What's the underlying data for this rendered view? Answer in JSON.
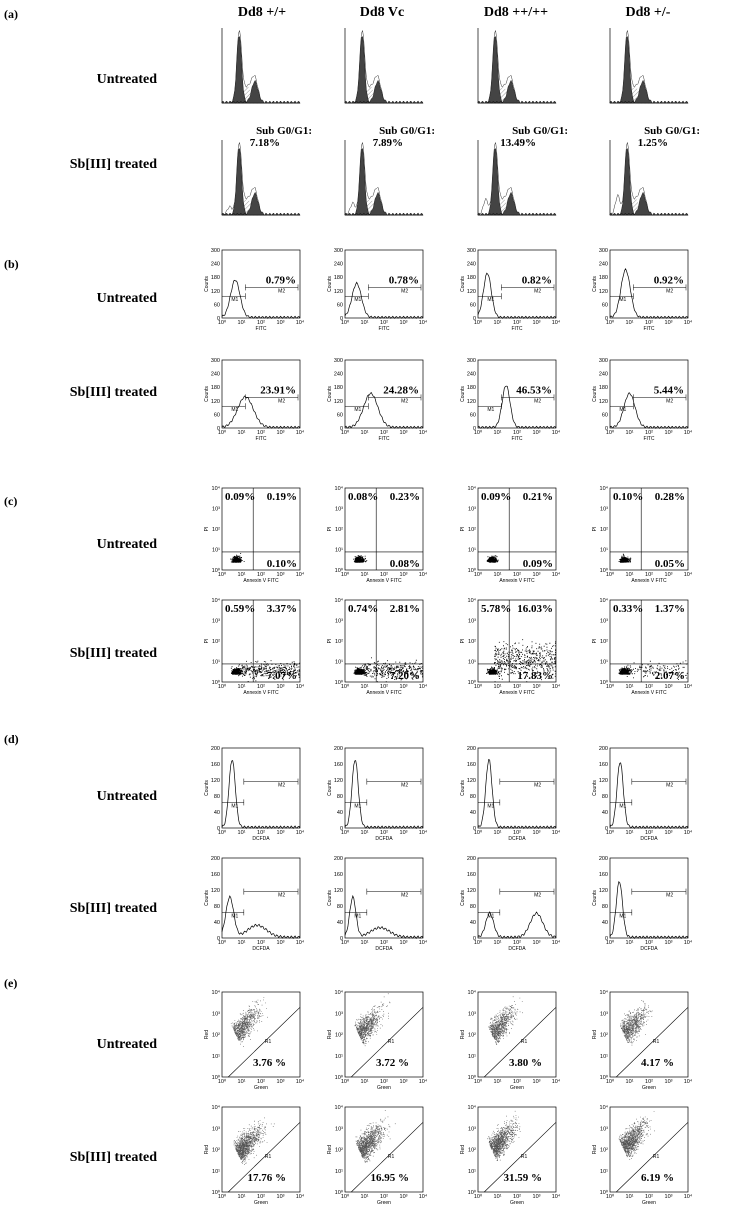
{
  "columns": [
    "Dd8 +/+",
    "Dd8 Vc",
    "Dd8 ++/++",
    "Dd8 +/-"
  ],
  "panels": [
    {
      "label": "(a)",
      "rows": [
        {
          "label": "Untreated"
        },
        {
          "label": "Sb[III] treated",
          "cells": [
            {
              "caption": "Sub G0/G1:",
              "value": "7.18%"
            },
            {
              "caption": "Sub G0/G1:",
              "value": "7.89%"
            },
            {
              "caption": "Sub G0/G1:",
              "value": "13.49%"
            },
            {
              "caption": "Sub G0/G1:",
              "value": "1.25%"
            }
          ]
        }
      ]
    },
    {
      "label": "(b)",
      "axes": {
        "x": "FITC",
        "y": "Counts",
        "gates": [
          "M1",
          "M2"
        ],
        "xticks": [
          "10⁰",
          "10¹",
          "10²",
          "10³",
          "10⁴"
        ],
        "yticks": [
          "0",
          "60",
          "120",
          "180",
          "240",
          "300"
        ]
      },
      "rows": [
        {
          "label": "Untreated",
          "cells": [
            "0.79%",
            "0.78%",
            "0.82%",
            "0.92%"
          ]
        },
        {
          "label": "Sb[III] treated",
          "cells": [
            "23.91%",
            "24.28%",
            "46.53%",
            "5.44%"
          ]
        }
      ]
    },
    {
      "label": "(c)",
      "axes": {
        "x": "Annexin V FITC",
        "y": "PI",
        "xticks": [
          "10⁰",
          "10¹",
          "10²",
          "10³",
          "10⁴"
        ],
        "yticks": [
          "10⁰",
          "10¹",
          "10²",
          "10³",
          "10⁴"
        ]
      },
      "rows": [
        {
          "label": "Untreated",
          "cells": [
            {
              "ul": "0.09%",
              "ur": "0.19%",
              "lr": "0.10%"
            },
            {
              "ul": "0.08%",
              "ur": "0.23%",
              "lr": "0.08%"
            },
            {
              "ul": "0.09%",
              "ur": "0.21%",
              "lr": "0.09%"
            },
            {
              "ul": "0.10%",
              "ur": "0.28%",
              "lr": "0.05%"
            }
          ]
        },
        {
          "label": "Sb[III] treated",
          "cells": [
            {
              "ul": "0.59%",
              "ur": "3.37%",
              "lr": "7.07%"
            },
            {
              "ul": "0.74%",
              "ur": "2.81%",
              "lr": "7.20%"
            },
            {
              "ul": "5.78%",
              "ur": "16.03%",
              "lr": "17.83%"
            },
            {
              "ul": "0.33%",
              "ur": "1.37%",
              "lr": "2.07%"
            }
          ]
        }
      ]
    },
    {
      "label": "(d)",
      "axes": {
        "x": "DCFDA",
        "y": "Counts",
        "gates": [
          "M1",
          "M2"
        ],
        "xticks": [
          "10⁰",
          "10¹",
          "10²",
          "10³",
          "10⁴"
        ],
        "yticks": [
          "0",
          "40",
          "80",
          "120",
          "160",
          "200"
        ]
      },
      "rows": [
        {
          "label": "Untreated"
        },
        {
          "label": "Sb[III] treated"
        }
      ]
    },
    {
      "label": "(e)",
      "axes": {
        "x": "Green",
        "y": "Red",
        "gate": "R1",
        "xticks": [
          "10⁰",
          "10¹",
          "10²",
          "10³",
          "10⁴"
        ],
        "yticks": [
          "10⁰",
          "10¹",
          "10²",
          "10³",
          "10⁴"
        ]
      },
      "rows": [
        {
          "label": "Untreated",
          "cells": [
            "3.76 %",
            "3.72 %",
            "3.80 %",
            "4.17 %"
          ]
        },
        {
          "label": "Sb[III] treated",
          "cells": [
            "17.76 %",
            "16.95 %",
            "31.59 %",
            "6.19 %"
          ]
        }
      ]
    }
  ]
}
